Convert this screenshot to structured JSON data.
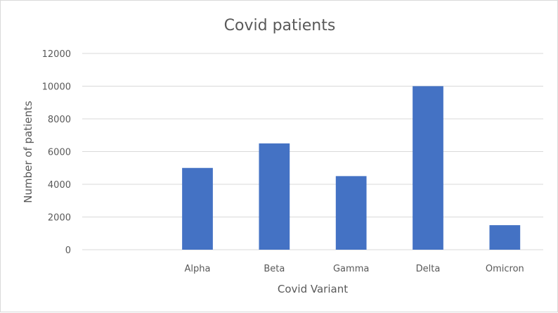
{
  "chart_data": {
    "type": "bar",
    "title": "Covid patients",
    "xlabel": "Covid Variant",
    "ylabel": "Number of patients",
    "categories": [
      "",
      "Alpha",
      "Beta",
      "Gamma",
      "Delta",
      "Omicron"
    ],
    "values": [
      0,
      5000,
      6500,
      4500,
      10000,
      1500
    ],
    "ylim": [
      0,
      12000
    ],
    "yticks": [
      "0",
      "2000",
      "4000",
      "6000",
      "8000",
      "10000",
      "12000"
    ],
    "grid": true,
    "legend": "none",
    "bar_color": "#4472C4",
    "grid_color": "#d9d9d9",
    "text_color": "#595959"
  }
}
